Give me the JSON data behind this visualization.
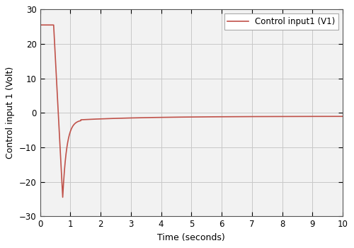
{
  "title": "",
  "xlabel": "Time (seconds)",
  "ylabel": "Control input 1 (Volt)",
  "legend_label": "Control input1 (V1)",
  "line_color": "#c0524a",
  "xlim": [
    0,
    10
  ],
  "ylim": [
    -30,
    30
  ],
  "xticks": [
    0,
    1,
    2,
    3,
    4,
    5,
    6,
    7,
    8,
    9,
    10
  ],
  "yticks": [
    -30,
    -20,
    -10,
    0,
    10,
    20,
    30
  ],
  "grid_color": "#c8c8c8",
  "background_color": "#ffffff",
  "plot_bg_color": "#f2f2f2",
  "initial_value": 25.5,
  "flat_end": 0.45,
  "trough_time": 0.75,
  "trough_value": -24.5,
  "recovery_time": 1.35,
  "recovery_value": -2.0,
  "settle_value": -1.0,
  "figsize": [
    5.0,
    3.5
  ],
  "dpi": 100
}
